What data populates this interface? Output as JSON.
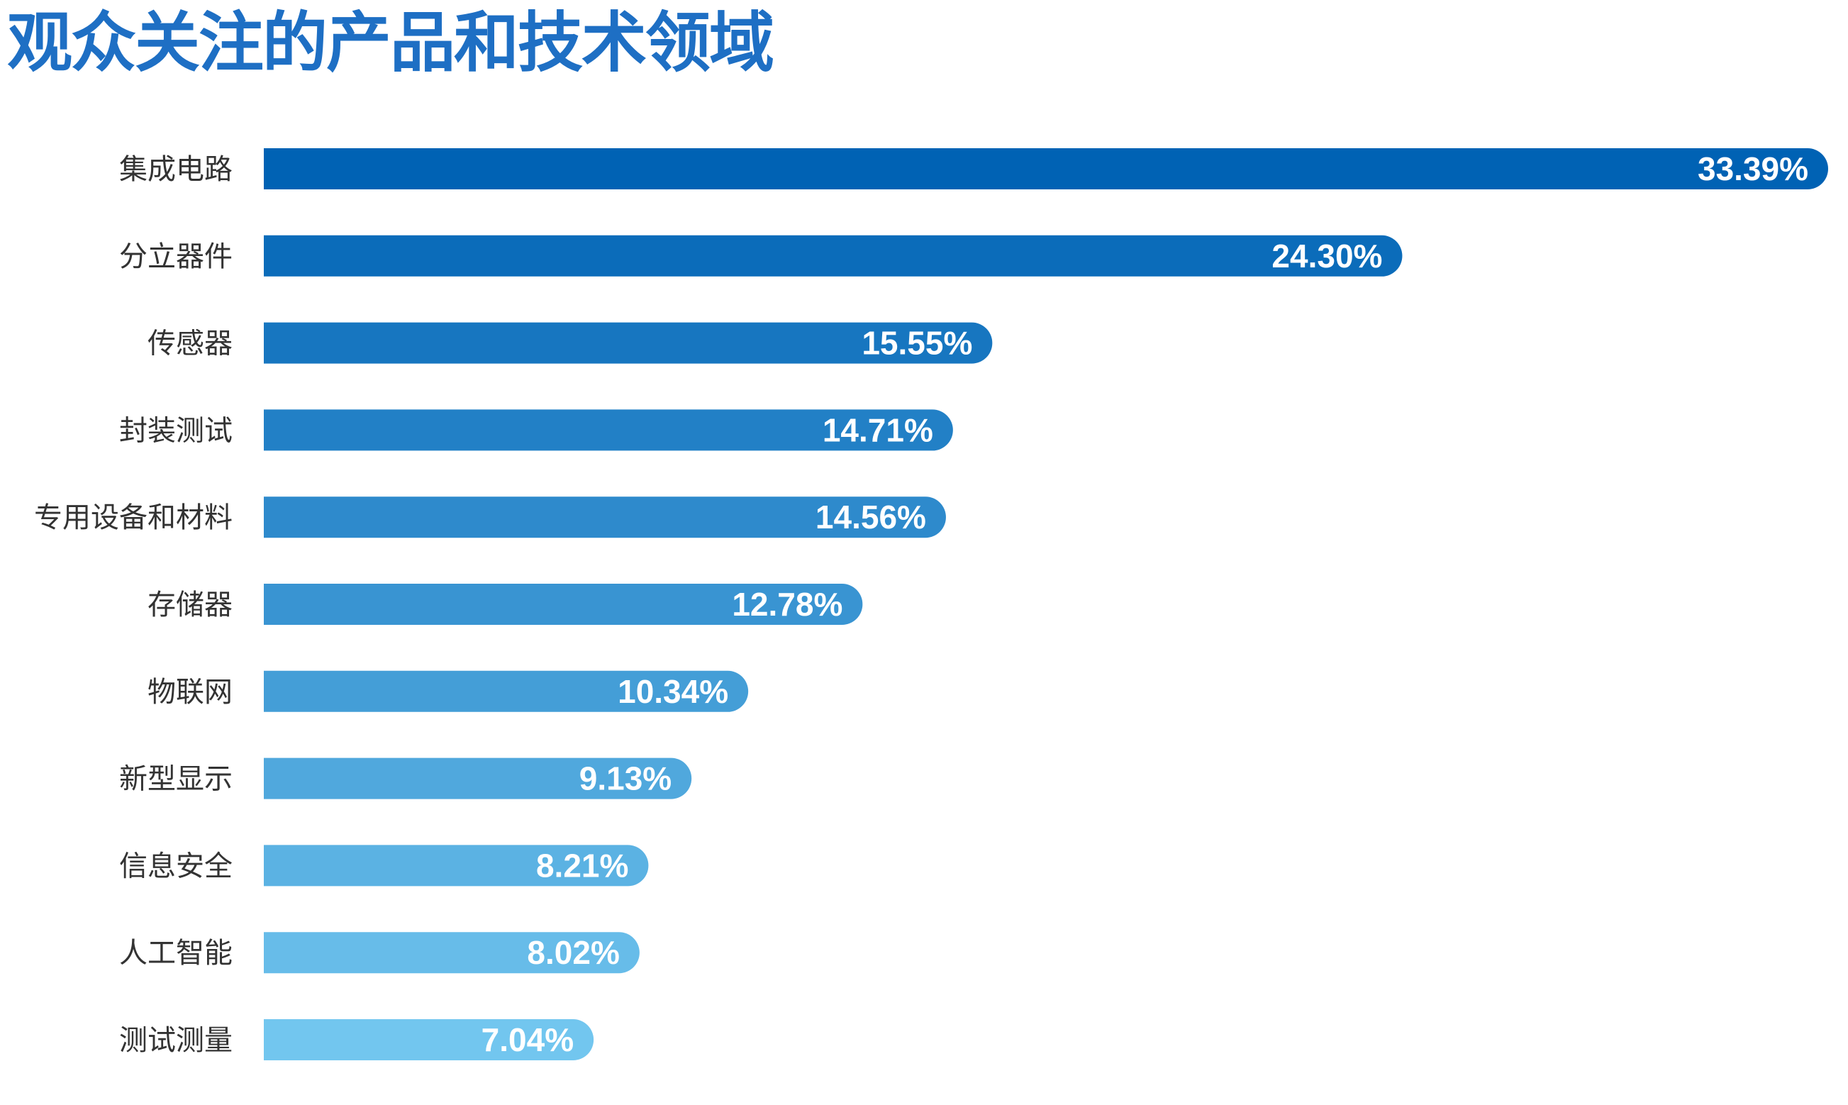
{
  "title": "观众关注的产品和技术领域",
  "colors": {
    "title": "#1e6fc4",
    "bar_start": "#0062b4",
    "bar_end": "#72c6ef",
    "category_text": "#333333",
    "value_text": "#ffffff"
  },
  "chart_data": {
    "type": "bar",
    "orientation": "horizontal",
    "title": "观众关注的产品和技术领域",
    "xlabel": "",
    "ylabel": "",
    "grid": false,
    "legend": "none",
    "xlim": [
      0,
      33.39
    ],
    "unit": "%",
    "categories": [
      "集成电路",
      "分立器件",
      "传感器",
      "封装测试",
      "专用设备和材料",
      "存储器",
      "物联网",
      "新型显示",
      "信息安全",
      "人工智能",
      "测试测量"
    ],
    "values": [
      33.39,
      24.3,
      15.55,
      14.71,
      14.56,
      12.78,
      10.34,
      9.13,
      8.21,
      8.02,
      7.04
    ],
    "value_labels": [
      "33.39%",
      "24.30%",
      "15.55%",
      "14.71%",
      "14.56%",
      "12.78%",
      "10.34%",
      "9.13%",
      "8.21%",
      "8.02%",
      "7.04%"
    ]
  }
}
